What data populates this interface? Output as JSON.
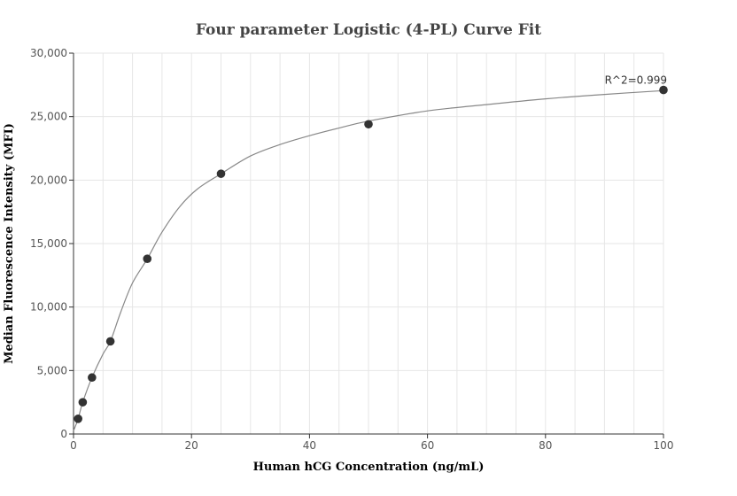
{
  "chart_data": {
    "type": "scatter",
    "title": "Four parameter Logistic (4-PL) Curve Fit",
    "xlabel": "Human hCG Concentration (ng/mL)",
    "ylabel": "Median Fluorescence Intensity (MFI)",
    "xlim": [
      0,
      100
    ],
    "ylim": [
      0,
      30000
    ],
    "x_ticks": [
      0,
      20,
      40,
      60,
      80,
      100
    ],
    "y_ticks": [
      0,
      5000,
      10000,
      15000,
      20000,
      25000,
      30000
    ],
    "x_tick_labels": [
      "0",
      "20",
      "40",
      "60",
      "80",
      "100"
    ],
    "y_tick_labels": [
      "0",
      "5,000",
      "10,000",
      "15,000",
      "20,000",
      "25,000",
      "30,000"
    ],
    "grid": true,
    "series": [
      {
        "x": [
          0.78,
          1.56,
          3.13,
          6.25,
          12.5,
          25,
          50,
          100
        ],
        "y": [
          1200,
          2500,
          4450,
          7300,
          13800,
          20500,
          24400,
          27100
        ]
      }
    ],
    "fit_curve": {
      "model": "4-PL",
      "x": [
        0,
        0.78,
        1.56,
        3.13,
        5,
        6.25,
        8,
        10,
        12.5,
        15,
        18,
        21,
        25,
        30,
        35,
        40,
        45,
        50,
        60,
        70,
        80,
        90,
        100
      ],
      "y": [
        250,
        1200,
        2500,
        4450,
        6300,
        7300,
        9600,
        11900,
        13800,
        15900,
        17900,
        19300,
        20500,
        21900,
        22800,
        23500,
        24100,
        24650,
        25450,
        25950,
        26400,
        26750,
        27050
      ]
    },
    "annotations": [
      {
        "text": "R^2=0.999",
        "x": 100,
        "y": 27100
      }
    ],
    "colors": {
      "points": "#333333",
      "curve": "#888888",
      "grid": "#e6e6e6",
      "axis": "#333333"
    }
  }
}
